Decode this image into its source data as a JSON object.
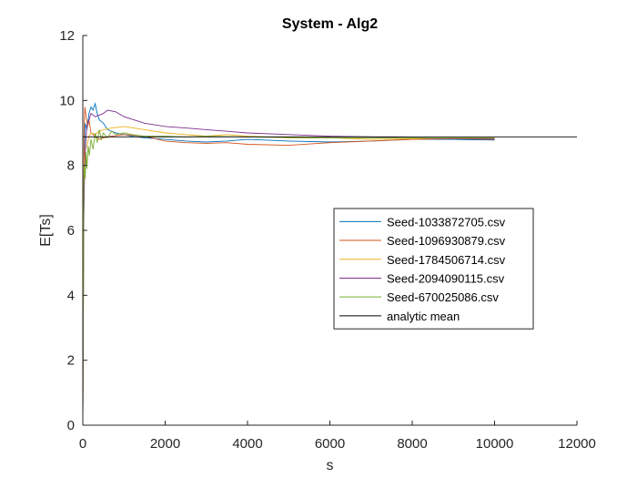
{
  "chart_data": {
    "type": "line",
    "title": "System - Alg2",
    "xlabel": "s",
    "ylabel": "E[Ts]",
    "xlim": [
      0,
      12000
    ],
    "ylim": [
      0,
      12
    ],
    "xticks": [
      0,
      2000,
      4000,
      6000,
      8000,
      10000,
      12000
    ],
    "yticks": [
      0,
      2,
      4,
      6,
      8,
      10,
      12
    ],
    "grid": false,
    "legend_position": "center-right",
    "series": [
      {
        "name": "Seed-1033872705.csv",
        "color": "#0072BD",
        "x": [
          0,
          30,
          60,
          100,
          150,
          200,
          250,
          300,
          350,
          400,
          500,
          600,
          800,
          1000,
          1200,
          1500,
          2000,
          2500,
          3000,
          3500,
          4000,
          5000,
          6000,
          7000,
          8000,
          9000,
          10000
        ],
        "y": [
          0,
          8.2,
          9.3,
          9.1,
          9.6,
          9.8,
          9.7,
          9.9,
          9.6,
          9.4,
          9.3,
          9.1,
          9.0,
          8.95,
          8.9,
          8.85,
          8.8,
          8.75,
          8.72,
          8.75,
          8.8,
          8.75,
          8.72,
          8.75,
          8.8,
          8.8,
          8.78
        ]
      },
      {
        "name": "Seed-1096930879.csv",
        "color": "#D95319",
        "x": [
          0,
          30,
          50,
          80,
          120,
          150,
          200,
          300,
          400,
          500,
          700,
          1000,
          1500,
          2000,
          2500,
          3000,
          3500,
          4000,
          5000,
          6000,
          7000,
          8000,
          9000,
          10000
        ],
        "y": [
          0,
          9.2,
          9.8,
          9.5,
          9.2,
          9.4,
          9.0,
          8.9,
          8.8,
          8.85,
          8.9,
          8.95,
          8.9,
          8.75,
          8.7,
          8.68,
          8.7,
          8.65,
          8.62,
          8.7,
          8.75,
          8.8,
          8.82,
          8.8
        ]
      },
      {
        "name": "Seed-1784506714.csv",
        "color": "#EDB120",
        "x": [
          0,
          30,
          60,
          100,
          150,
          200,
          300,
          400,
          500,
          700,
          1000,
          1500,
          2000,
          2500,
          3000,
          3500,
          4000,
          5000,
          6000,
          7000,
          8000,
          9000,
          10000
        ],
        "y": [
          0,
          8.0,
          8.5,
          8.6,
          8.9,
          9.0,
          8.95,
          9.05,
          9.1,
          9.15,
          9.2,
          9.1,
          9.0,
          8.95,
          8.9,
          8.95,
          8.9,
          8.85,
          8.85,
          8.8,
          8.82,
          8.85,
          8.85
        ]
      },
      {
        "name": "Seed-2094090115.csv",
        "color": "#7E2F8E",
        "x": [
          0,
          20,
          40,
          70,
          100,
          150,
          200,
          300,
          400,
          500,
          600,
          800,
          1000,
          1500,
          2000,
          2500,
          3000,
          3500,
          4000,
          5000,
          6000,
          7000,
          8000,
          9000,
          10000
        ],
        "y": [
          0,
          6.2,
          7.5,
          8.7,
          9.2,
          9.4,
          9.6,
          9.5,
          9.55,
          9.6,
          9.7,
          9.65,
          9.5,
          9.3,
          9.2,
          9.15,
          9.1,
          9.05,
          9.0,
          8.95,
          8.9,
          8.88,
          8.85,
          8.82,
          8.82
        ]
      },
      {
        "name": "Seed-670025086.csv",
        "color": "#77AC30",
        "x": [
          0,
          20,
          40,
          60,
          80,
          100,
          130,
          160,
          200,
          250,
          300,
          350,
          400,
          450,
          500,
          600,
          700,
          800,
          1000,
          1200,
          1500,
          2000,
          2500,
          3000,
          4000,
          5000,
          6000,
          7000,
          8000,
          9000,
          10000
        ],
        "y": [
          0,
          7.2,
          8.0,
          7.6,
          8.4,
          7.9,
          8.6,
          8.3,
          8.8,
          8.5,
          9.0,
          8.7,
          9.1,
          8.8,
          9.0,
          8.85,
          9.05,
          8.95,
          9.0,
          8.95,
          8.9,
          8.9,
          8.88,
          8.9,
          8.88,
          8.86,
          8.85,
          8.85,
          8.85,
          8.84,
          8.84
        ]
      },
      {
        "name": "analytic mean",
        "color": "#000000",
        "x": [
          0,
          12000
        ],
        "y": [
          8.88,
          8.88
        ]
      }
    ]
  }
}
